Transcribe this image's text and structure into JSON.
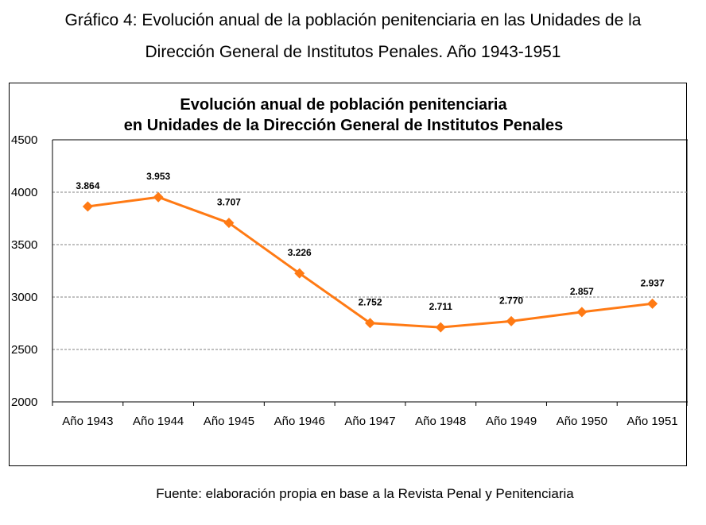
{
  "caption": {
    "line1": "Gráfico 4: Evolución anual de la población penitenciaria en las Unidades de la",
    "line2": "Dirección General de Institutos Penales. Año 1943-1951"
  },
  "source": "Fuente: elaboración propia en base a la Revista Penal y Penitenciaria",
  "chart_data": {
    "type": "line",
    "title_lines": [
      "Evolución anual de población penitenciaria",
      "en Unidades de la Dirección General de Institutos Penales"
    ],
    "xlabel": "",
    "ylabel": "",
    "categories": [
      "Año 1943",
      "Año 1944",
      "Año 1945",
      "Año 1946",
      "Año 1947",
      "Año 1948",
      "Año 1949",
      "Año 1950",
      "Año 1951"
    ],
    "series": [
      {
        "values": [
          3864,
          3953,
          3707,
          3226,
          2752,
          2711,
          2770,
          2857,
          2937
        ],
        "labels": [
          "3.864",
          "3.953",
          "3.707",
          "3.226",
          "2.752",
          "2.711",
          "2.770",
          "2.857",
          "2.937"
        ],
        "color": "#ff7a14",
        "marker": "diamond"
      }
    ],
    "ylim": [
      2000,
      4500
    ],
    "yticks": [
      2000,
      2500,
      3000,
      3500,
      4000,
      4500
    ],
    "grid": "horizontal-dashed",
    "legend": "none"
  }
}
